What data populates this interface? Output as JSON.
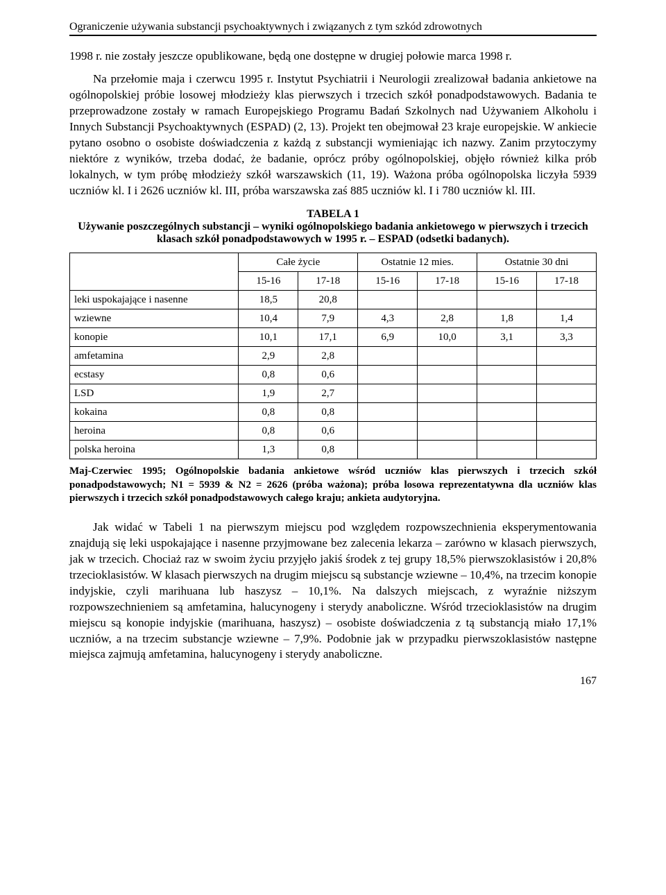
{
  "running_head": "Ograniczenie używania substancji psychoaktywnych i związanych z tym szkód zdrowotnych",
  "para1": "1998 r. nie zostały jeszcze opublikowane, będą one dostępne w drugiej połowie marca 1998 r.",
  "para2": "Na przełomie maja i czerwcu 1995 r. Instytut Psychiatrii i Neurologii zrealizował badania ankietowe na ogólnopolskiej próbie losowej młodzieży klas pierwszych i trzecich szkół ponadpodstawowych. Badania te przeprowadzone zostały w ramach Europejskiego Programu Badań Szkolnych nad Używaniem Alkoholu i Innych Substancji Psychoaktywnych (ESPAD) (2, 13). Projekt ten obejmował 23 kraje europejskie. W ankiecie pytano osobno o osobiste doświadczenia z każdą z substancji wymieniając ich nazwy. Zanim przytoczymy niektóre z wyników, trzeba dodać, że badanie, oprócz próby ogólnopolskiej, objęło również kilka prób lokalnych, w tym próbę młodzieży szkół warszawskich (11, 19). Ważona próba ogólnopolska liczyła 5939 uczniów kl. I i 2626 uczniów kl. III, próba warszawska zaś 885 uczniów kl. I i 780 uczniów kl. III.",
  "table": {
    "label": "TABELA 1",
    "caption": "Używanie poszczególnych substancji – wyniki ogólnopolskiego badania ankietowego w pierwszych i trzecich klasach szkół ponadpodstawowych w 1995 r. – ESPAD (odsetki badanych).",
    "type": "table",
    "group_headers": [
      "Całe życie",
      "Ostatnie 12 mies.",
      "Ostatnie 30 dni"
    ],
    "sub_headers": [
      "15-16",
      "17-18",
      "15-16",
      "17-18",
      "15-16",
      "17-18"
    ],
    "rows": [
      {
        "name": "leki uspokajające i nasenne",
        "c": [
          "18,5",
          "20,8",
          "",
          "",
          "",
          ""
        ]
      },
      {
        "name": "wziewne",
        "c": [
          "10,4",
          "7,9",
          "4,3",
          "2,8",
          "1,8",
          "1,4"
        ]
      },
      {
        "name": "konopie",
        "c": [
          "10,1",
          "17,1",
          "6,9",
          "10,0",
          "3,1",
          "3,3"
        ]
      },
      {
        "name": "amfetamina",
        "c": [
          "2,9",
          "2,8",
          "",
          "",
          "",
          ""
        ]
      },
      {
        "name": "ecstasy",
        "c": [
          "0,8",
          "0,6",
          "",
          "",
          "",
          ""
        ]
      },
      {
        "name": "LSD",
        "c": [
          "1,9",
          "2,7",
          "",
          "",
          "",
          ""
        ]
      },
      {
        "name": "kokaina",
        "c": [
          "0,8",
          "0,8",
          "",
          "",
          "",
          ""
        ]
      },
      {
        "name": "heroina",
        "c": [
          "0,8",
          "0,6",
          "",
          "",
          "",
          ""
        ]
      },
      {
        "name": "polska heroina",
        "c": [
          "1,3",
          "0,8",
          "",
          "",
          "",
          ""
        ]
      }
    ],
    "border_color": "#000000",
    "col_row_label_width_pct": 32,
    "col_data_width_pct": 11.3,
    "font_size_pt": 11
  },
  "table_note": "Maj-Czerwiec 1995; Ogólnopolskie badania ankietowe wśród uczniów klas pierwszych i trzecich szkół ponadpodstawowych; N1 = 5939 & N2 = 2626 (próba ważona); próba losowa reprezentatywna dla uczniów klas pierwszych i trzecich szkół ponadpodstawowych całego kraju; ankieta audytoryjna.",
  "para3": "Jak widać w Tabeli 1 na pierwszym miejscu pod względem rozpowszechnienia eksperymentowania znajdują się leki uspokajające i nasenne przyjmowane bez zalecenia lekarza – zarówno w klasach pierwszych, jak w trzecich. Chociaż raz w swoim życiu przyjęło jakiś środek z tej grupy 18,5% pierwszoklasistów i 20,8% trzecioklasistów. W klasach pierwszych na drugim miejscu są substancje wziewne – 10,4%, na trzecim konopie indyjskie, czyli marihuana lub haszysz – 10,1%. Na dalszych miejscach, z wyraźnie niższym rozpowszechnieniem są amfetamina, halucynogeny i sterydy anaboliczne. Wśród trzecioklasistów na drugim miejscu są konopie indyjskie (marihuana, haszysz) – osobiste doświadczenia z tą substancją miało 17,1% uczniów, a na trzecim substancje wziewne – 7,9%. Podobnie jak w przypadku pierwszoklasistów następne miejsca zajmują amfetamina, halucynogeny i sterydy anaboliczne.",
  "page_number": "167"
}
